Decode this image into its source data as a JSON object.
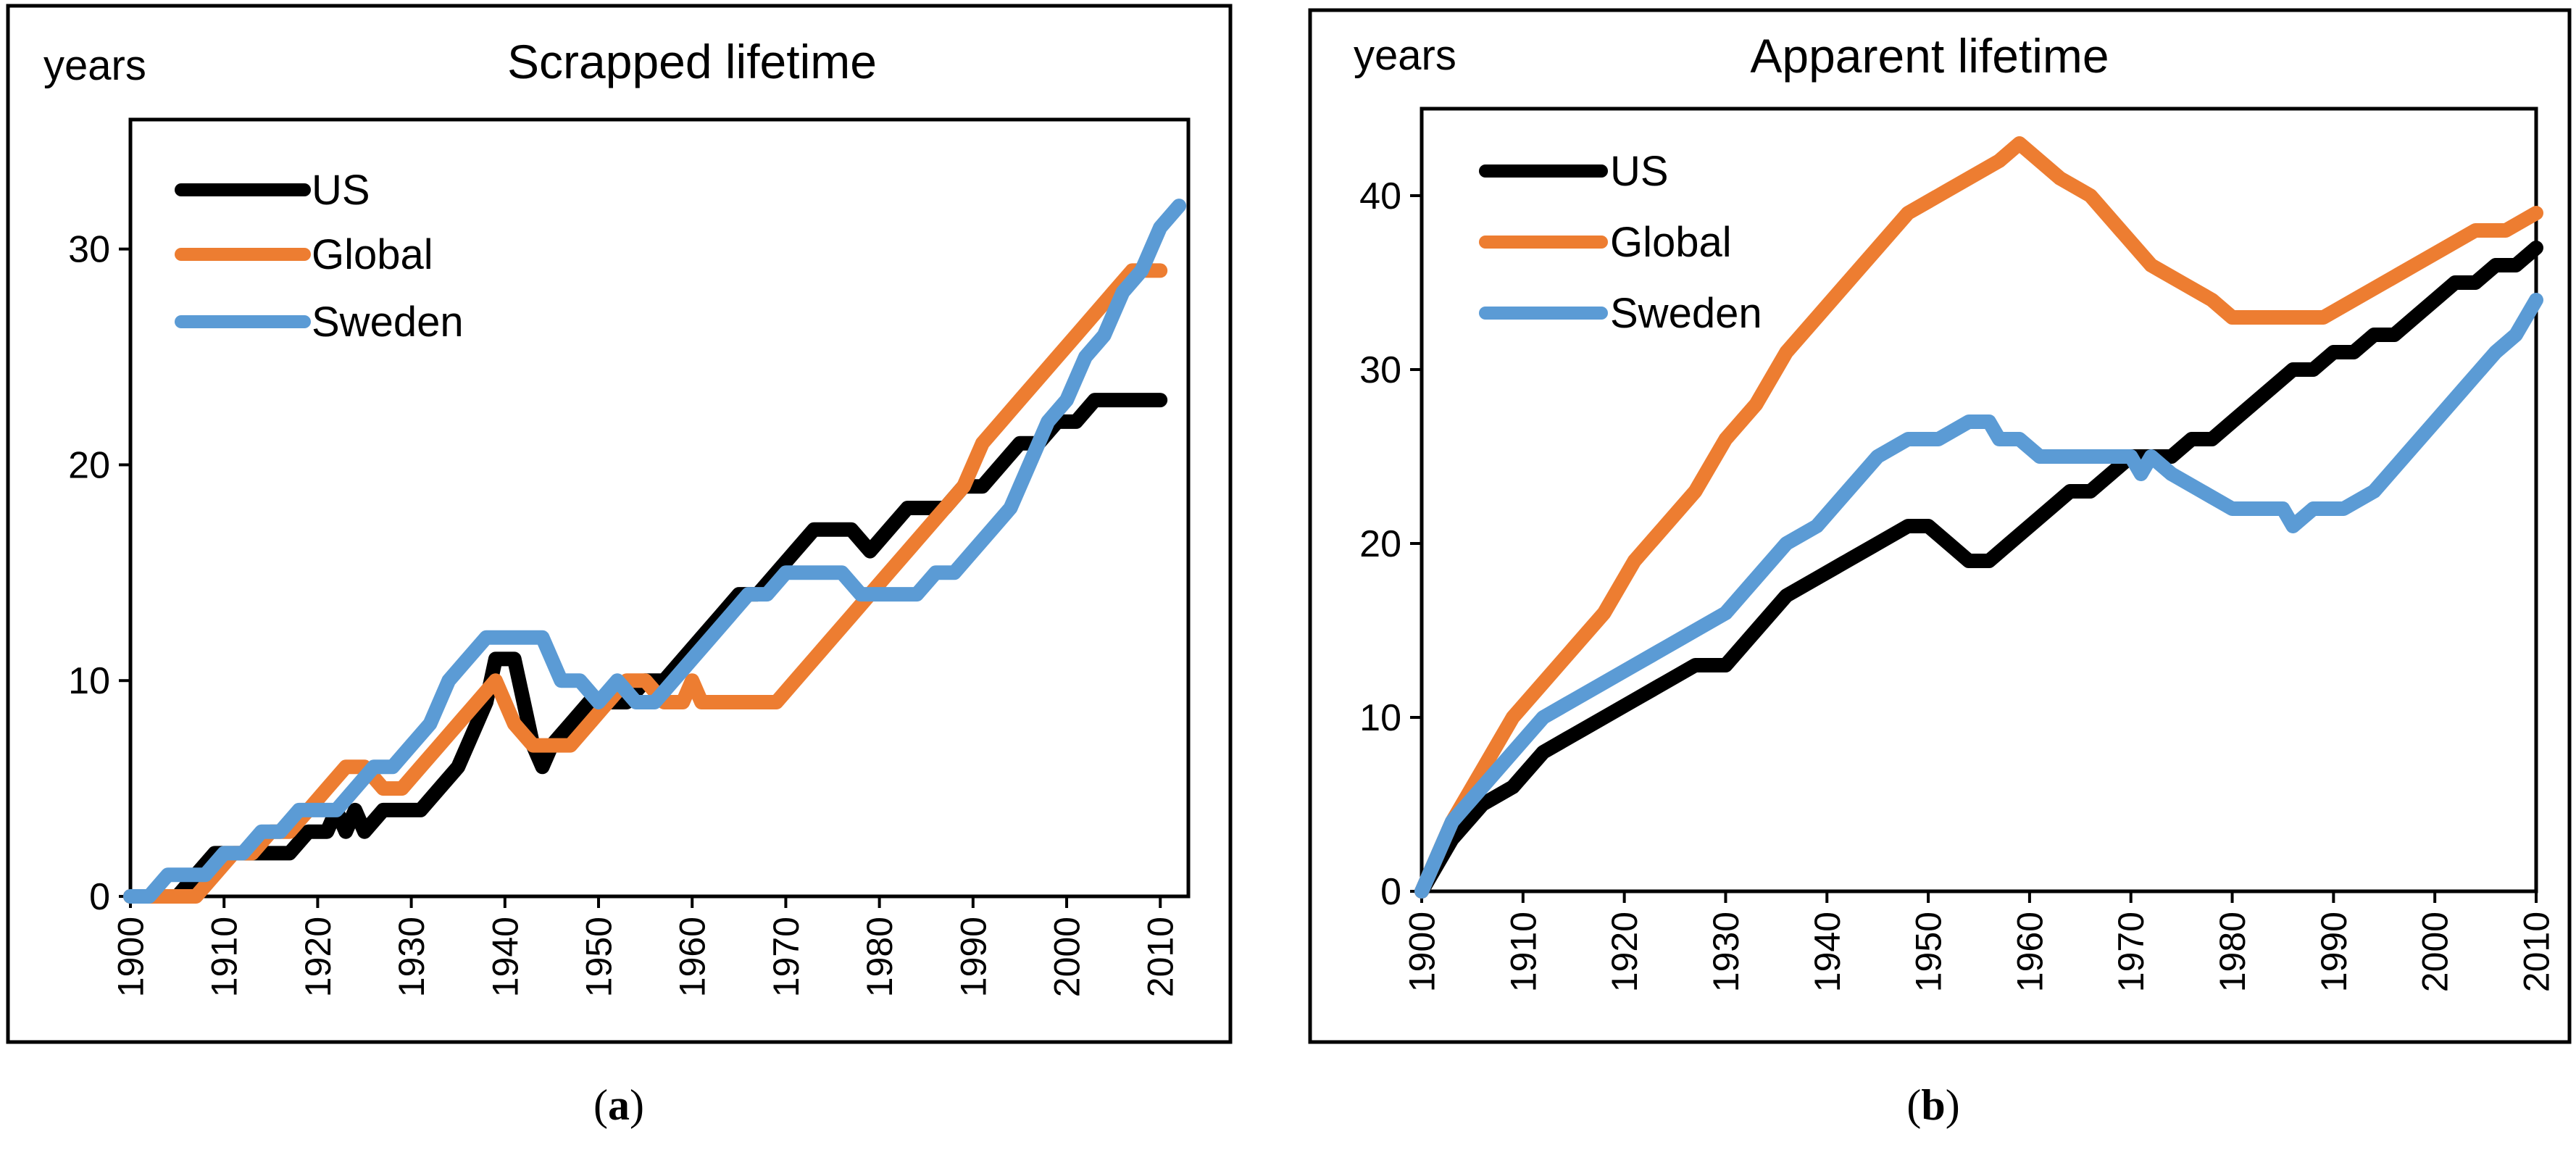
{
  "colors": {
    "US": "#000000",
    "Global": "#ED7D31",
    "Sweden": "#5B9BD5",
    "frame": "#000000"
  },
  "chart_data": [
    {
      "type": "line",
      "title": "Scrapped lifetime",
      "ylabel": "years",
      "xlabel": "",
      "caption_letter": "a",
      "xlim": [
        1900,
        2013
      ],
      "ylim": [
        0,
        36
      ],
      "yticks": [
        0,
        10,
        20,
        30
      ],
      "xticks": [
        1900,
        1910,
        1920,
        1930,
        1940,
        1950,
        1960,
        1970,
        1980,
        1990,
        2000,
        2010
      ],
      "legend": "top-left",
      "series": [
        {
          "name": "US",
          "color": "#000000",
          "x": [
            1900,
            1903,
            1905,
            1907,
            1909,
            1911,
            1913,
            1915,
            1917,
            1919,
            1921,
            1922,
            1923,
            1924,
            1925,
            1927,
            1929,
            1931,
            1933,
            1935,
            1937,
            1938,
            1939,
            1941,
            1942,
            1943,
            1944,
            1945,
            1947,
            1949,
            1951,
            1953,
            1955,
            1957,
            1959,
            1961,
            1963,
            1965,
            1967,
            1969,
            1971,
            1973,
            1975,
            1977,
            1979,
            1981,
            1983,
            1985,
            1987,
            1989,
            1991,
            1993,
            1995,
            1997,
            1999,
            2001,
            2003,
            2005,
            2007,
            2009,
            2010
          ],
          "values": [
            0,
            0,
            0,
            1,
            2,
            2,
            2,
            2,
            2,
            3,
            3,
            4,
            3,
            4,
            3,
            4,
            4,
            4,
            5,
            6,
            8,
            9,
            11,
            11,
            9,
            7,
            6,
            7,
            8,
            9,
            9,
            9,
            10,
            10,
            11,
            12,
            13,
            14,
            14,
            15,
            16,
            17,
            17,
            17,
            16,
            17,
            18,
            18,
            18,
            19,
            19,
            20,
            21,
            21,
            22,
            22,
            23,
            23,
            23,
            23,
            23
          ]
        },
        {
          "name": "Global",
          "color": "#ED7D31",
          "x": [
            1900,
            1903,
            1905,
            1907,
            1909,
            1911,
            1913,
            1915,
            1917,
            1919,
            1921,
            1923,
            1925,
            1927,
            1929,
            1931,
            1933,
            1935,
            1937,
            1939,
            1941,
            1943,
            1945,
            1947,
            1949,
            1951,
            1953,
            1955,
            1957,
            1959,
            1960,
            1961,
            1963,
            1965,
            1967,
            1969,
            1971,
            1973,
            1975,
            1977,
            1979,
            1981,
            1983,
            1985,
            1987,
            1989,
            1991,
            1993,
            1995,
            1997,
            1999,
            2001,
            2003,
            2005,
            2007,
            2009,
            2010
          ],
          "values": [
            0,
            0,
            0,
            0,
            1,
            2,
            2,
            3,
            3,
            4,
            5,
            6,
            6,
            5,
            5,
            6,
            7,
            8,
            9,
            10,
            8,
            7,
            7,
            7,
            8,
            9,
            10,
            10,
            9,
            9,
            10,
            9,
            9,
            9,
            9,
            9,
            10,
            11,
            12,
            13,
            14,
            15,
            16,
            17,
            18,
            19,
            21,
            22,
            23,
            24,
            25,
            26,
            27,
            28,
            29,
            29,
            29
          ]
        },
        {
          "name": "Sweden",
          "color": "#5B9BD5",
          "x": [
            1900,
            1902,
            1904,
            1906,
            1908,
            1910,
            1912,
            1914,
            1916,
            1918,
            1920,
            1922,
            1924,
            1926,
            1928,
            1930,
            1932,
            1934,
            1936,
            1938,
            1940,
            1942,
            1944,
            1946,
            1948,
            1950,
            1952,
            1954,
            1956,
            1958,
            1960,
            1962,
            1964,
            1966,
            1968,
            1970,
            1972,
            1974,
            1976,
            1978,
            1980,
            1982,
            1984,
            1986,
            1988,
            1990,
            1992,
            1994,
            1996,
            1998,
            2000,
            2002,
            2004,
            2006,
            2008,
            2010,
            2012
          ],
          "values": [
            0,
            0,
            1,
            1,
            1,
            2,
            2,
            3,
            3,
            4,
            4,
            4,
            5,
            6,
            6,
            7,
            8,
            10,
            11,
            12,
            12,
            12,
            12,
            10,
            10,
            9,
            10,
            9,
            9,
            10,
            11,
            12,
            13,
            14,
            14,
            15,
            15,
            15,
            15,
            14,
            14,
            14,
            14,
            15,
            15,
            16,
            17,
            18,
            20,
            22,
            23,
            25,
            26,
            28,
            29,
            31,
            32
          ]
        }
      ]
    },
    {
      "type": "line",
      "title": "Apparent lifetime",
      "ylabel": "years",
      "xlabel": "",
      "caption_letter": "b",
      "xlim": [
        1900,
        2010
      ],
      "ylim": [
        0,
        45
      ],
      "yticks": [
        0,
        10,
        20,
        30,
        40
      ],
      "xticks": [
        1900,
        1910,
        1920,
        1930,
        1940,
        1950,
        1960,
        1970,
        1980,
        1990,
        2000,
        2010
      ],
      "legend": "top-left",
      "series": [
        {
          "name": "US",
          "color": "#000000",
          "x": [
            1900,
            1903,
            1906,
            1909,
            1912,
            1915,
            1918,
            1921,
            1924,
            1927,
            1930,
            1933,
            1936,
            1939,
            1942,
            1945,
            1948,
            1950,
            1952,
            1954,
            1956,
            1958,
            1960,
            1962,
            1964,
            1966,
            1968,
            1970,
            1972,
            1974,
            1976,
            1978,
            1980,
            1982,
            1984,
            1986,
            1988,
            1990,
            1992,
            1994,
            1996,
            1998,
            2000,
            2002,
            2004,
            2006,
            2008,
            2010
          ],
          "values": [
            0,
            3,
            5,
            6,
            8,
            9,
            10,
            11,
            12,
            13,
            13,
            15,
            17,
            18,
            19,
            20,
            21,
            21,
            20,
            19,
            19,
            20,
            21,
            22,
            23,
            23,
            24,
            25,
            25,
            25,
            26,
            26,
            27,
            28,
            29,
            30,
            30,
            31,
            31,
            32,
            32,
            33,
            34,
            35,
            35,
            36,
            36,
            37
          ]
        },
        {
          "name": "Global",
          "color": "#ED7D31",
          "x": [
            1900,
            1903,
            1906,
            1909,
            1912,
            1915,
            1918,
            1921,
            1924,
            1927,
            1930,
            1933,
            1936,
            1939,
            1942,
            1945,
            1948,
            1951,
            1954,
            1957,
            1959,
            1961,
            1963,
            1966,
            1969,
            1972,
            1975,
            1978,
            1980,
            1983,
            1986,
            1989,
            1992,
            1995,
            1998,
            2001,
            2004,
            2007,
            2010
          ],
          "values": [
            0,
            4,
            7,
            10,
            12,
            14,
            16,
            19,
            21,
            23,
            26,
            28,
            31,
            33,
            35,
            37,
            39,
            40,
            41,
            42,
            43,
            42,
            41,
            40,
            38,
            36,
            35,
            34,
            33,
            33,
            33,
            33,
            34,
            35,
            36,
            37,
            38,
            38,
            39
          ]
        },
        {
          "name": "Sweden",
          "color": "#5B9BD5",
          "x": [
            1900,
            1903,
            1906,
            1909,
            1912,
            1915,
            1918,
            1921,
            1924,
            1927,
            1930,
            1933,
            1936,
            1939,
            1942,
            1945,
            1948,
            1951,
            1954,
            1956,
            1957,
            1959,
            1961,
            1964,
            1967,
            1970,
            1971,
            1972,
            1974,
            1977,
            1980,
            1983,
            1985,
            1986,
            1988,
            1991,
            1994,
            1997,
            2000,
            2003,
            2006,
            2008,
            2010
          ],
          "values": [
            0,
            4,
            6,
            8,
            10,
            11,
            12,
            13,
            14,
            15,
            16,
            18,
            20,
            21,
            23,
            25,
            26,
            26,
            27,
            27,
            26,
            26,
            25,
            25,
            25,
            25,
            24,
            25,
            24,
            23,
            22,
            22,
            22,
            21,
            22,
            22,
            23,
            25,
            27,
            29,
            31,
            32,
            34
          ]
        }
      ]
    }
  ]
}
